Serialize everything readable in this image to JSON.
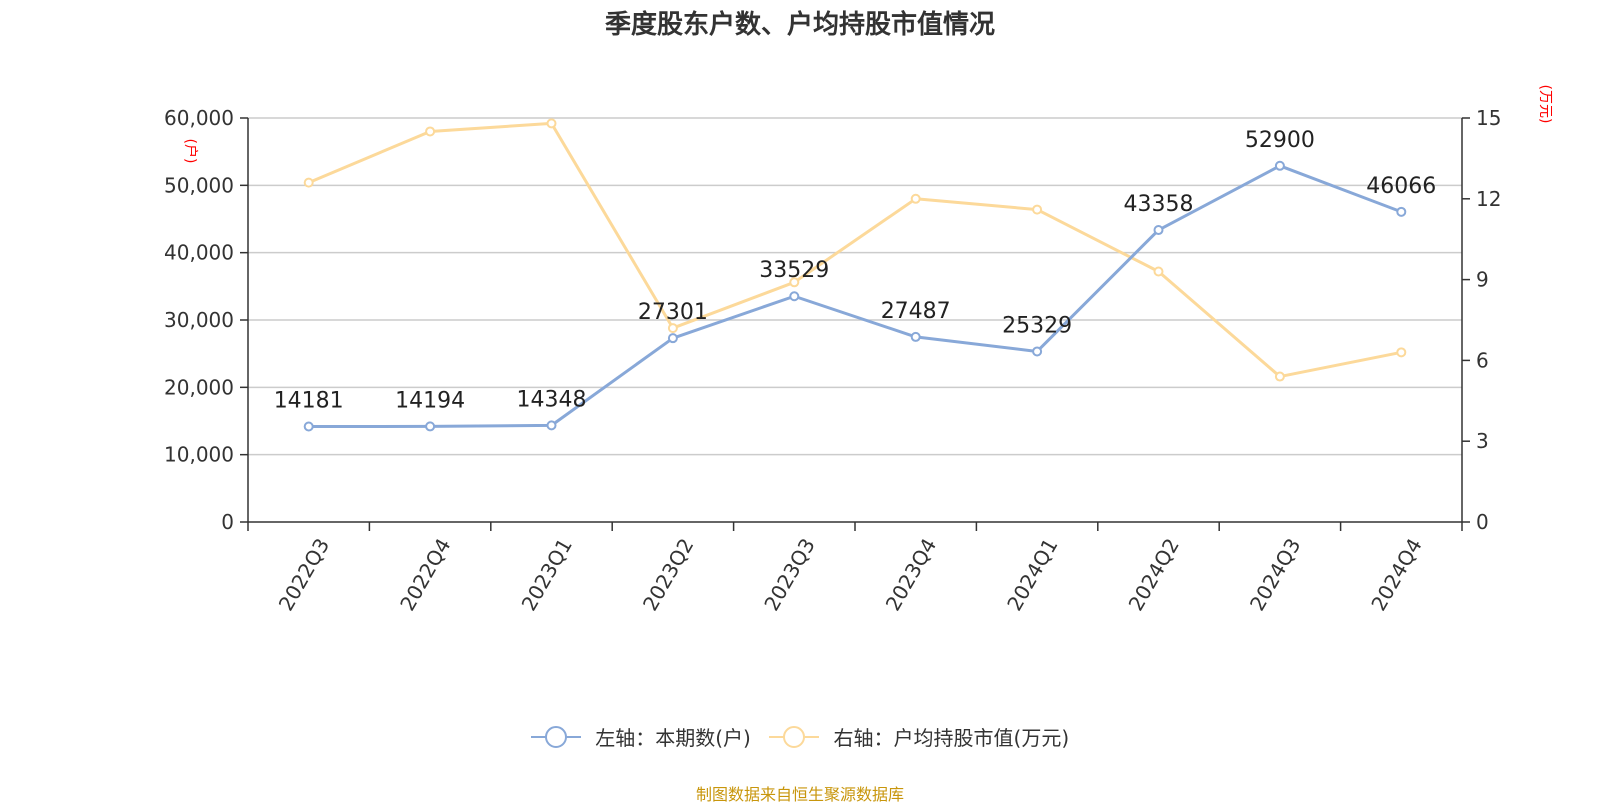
{
  "chart_data": {
    "type": "line",
    "title": "季度股东户数、户均持股市值情况",
    "categories": [
      "2022Q3",
      "2022Q4",
      "2023Q1",
      "2023Q2",
      "2023Q3",
      "2023Q4",
      "2024Q1",
      "2024Q2",
      "2024Q3",
      "2024Q4"
    ],
    "series": [
      {
        "name": "左轴：本期数(户)",
        "axis": "left",
        "color": "#88a8d8",
        "values": [
          14181,
          14194,
          14348,
          27301,
          33529,
          27487,
          25329,
          43358,
          52900,
          46066
        ],
        "labels": [
          "14181",
          "14194",
          "14348",
          "27301",
          "33529",
          "27487",
          "25329",
          "43358",
          "52900",
          "46066"
        ]
      },
      {
        "name": "右轴：户均持股市值(万元)",
        "axis": "right",
        "color": "#fcd99a",
        "values": [
          12.6,
          14.5,
          14.8,
          7.2,
          8.9,
          12.0,
          11.6,
          9.3,
          5.4,
          6.3
        ]
      }
    ],
    "y_left": {
      "label": "(户)",
      "ylim": [
        0,
        60000
      ],
      "ticks": [
        0,
        10000,
        20000,
        30000,
        40000,
        50000,
        60000
      ],
      "tick_labels": [
        "0",
        "10,000",
        "20,000",
        "30,000",
        "40,000",
        "50,000",
        "60,000"
      ]
    },
    "y_right": {
      "label": "(万元)",
      "ylim": [
        0,
        15
      ],
      "ticks": [
        0,
        3,
        6,
        9,
        12,
        15
      ],
      "tick_labels": [
        "0",
        "3",
        "6",
        "9",
        "12",
        "15"
      ]
    },
    "grid": true,
    "legend_position": "bottom",
    "axis_label_color": "#ff0000",
    "source": "制图数据来自恒生聚源数据库"
  }
}
